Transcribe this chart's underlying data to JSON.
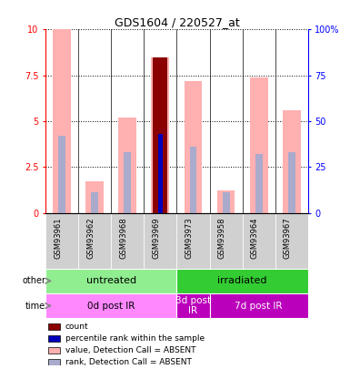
{
  "title": "GDS1604 / 220527_at",
  "samples": [
    "GSM93961",
    "GSM93962",
    "GSM93968",
    "GSM93969",
    "GSM93973",
    "GSM93958",
    "GSM93964",
    "GSM93967"
  ],
  "pink_bar_heights": [
    10.0,
    1.7,
    5.2,
    8.5,
    7.2,
    1.2,
    7.4,
    5.6
  ],
  "blue_bar_heights": [
    4.2,
    1.1,
    3.3,
    4.3,
    3.6,
    1.1,
    3.2,
    3.3
  ],
  "dark_red_bar_idx": 3,
  "dark_red_bar_val": 8.5,
  "dark_blue_bar_idx": 3,
  "dark_blue_bar_val": 4.3,
  "ylim": [
    0,
    10
  ],
  "yticks": [
    0,
    2.5,
    5.0,
    7.5,
    10
  ],
  "ytick_labels_left": [
    "0",
    "2.5",
    "5",
    "7.5",
    "10"
  ],
  "ytick_labels_right": [
    "0",
    "25",
    "50",
    "75",
    "100%"
  ],
  "group_other": [
    {
      "label": "untreated",
      "start": 0,
      "end": 4,
      "color": "#90EE90"
    },
    {
      "label": "irradiated",
      "start": 4,
      "end": 8,
      "color": "#33CC33"
    }
  ],
  "group_time": [
    {
      "label": "0d post IR",
      "start": 0,
      "end": 4,
      "color": "#FF88FF",
      "text_color": "black"
    },
    {
      "label": "3d post\nIR",
      "start": 4,
      "end": 5,
      "color": "#BB00BB",
      "text_color": "white"
    },
    {
      "label": "7d post IR",
      "start": 5,
      "end": 8,
      "color": "#BB00BB",
      "text_color": "white"
    }
  ],
  "legend_items": [
    {
      "color": "#8B0000",
      "label": "count"
    },
    {
      "color": "#0000BB",
      "label": "percentile rank within the sample"
    },
    {
      "color": "#FFB0B0",
      "label": "value, Detection Call = ABSENT"
    },
    {
      "color": "#AAAACC",
      "label": "rank, Detection Call = ABSENT"
    }
  ],
  "pink_color": "#FFB0B0",
  "blue_color": "#AAAACC",
  "dark_red_color": "#8B0000",
  "dark_blue_color": "#0000BB"
}
